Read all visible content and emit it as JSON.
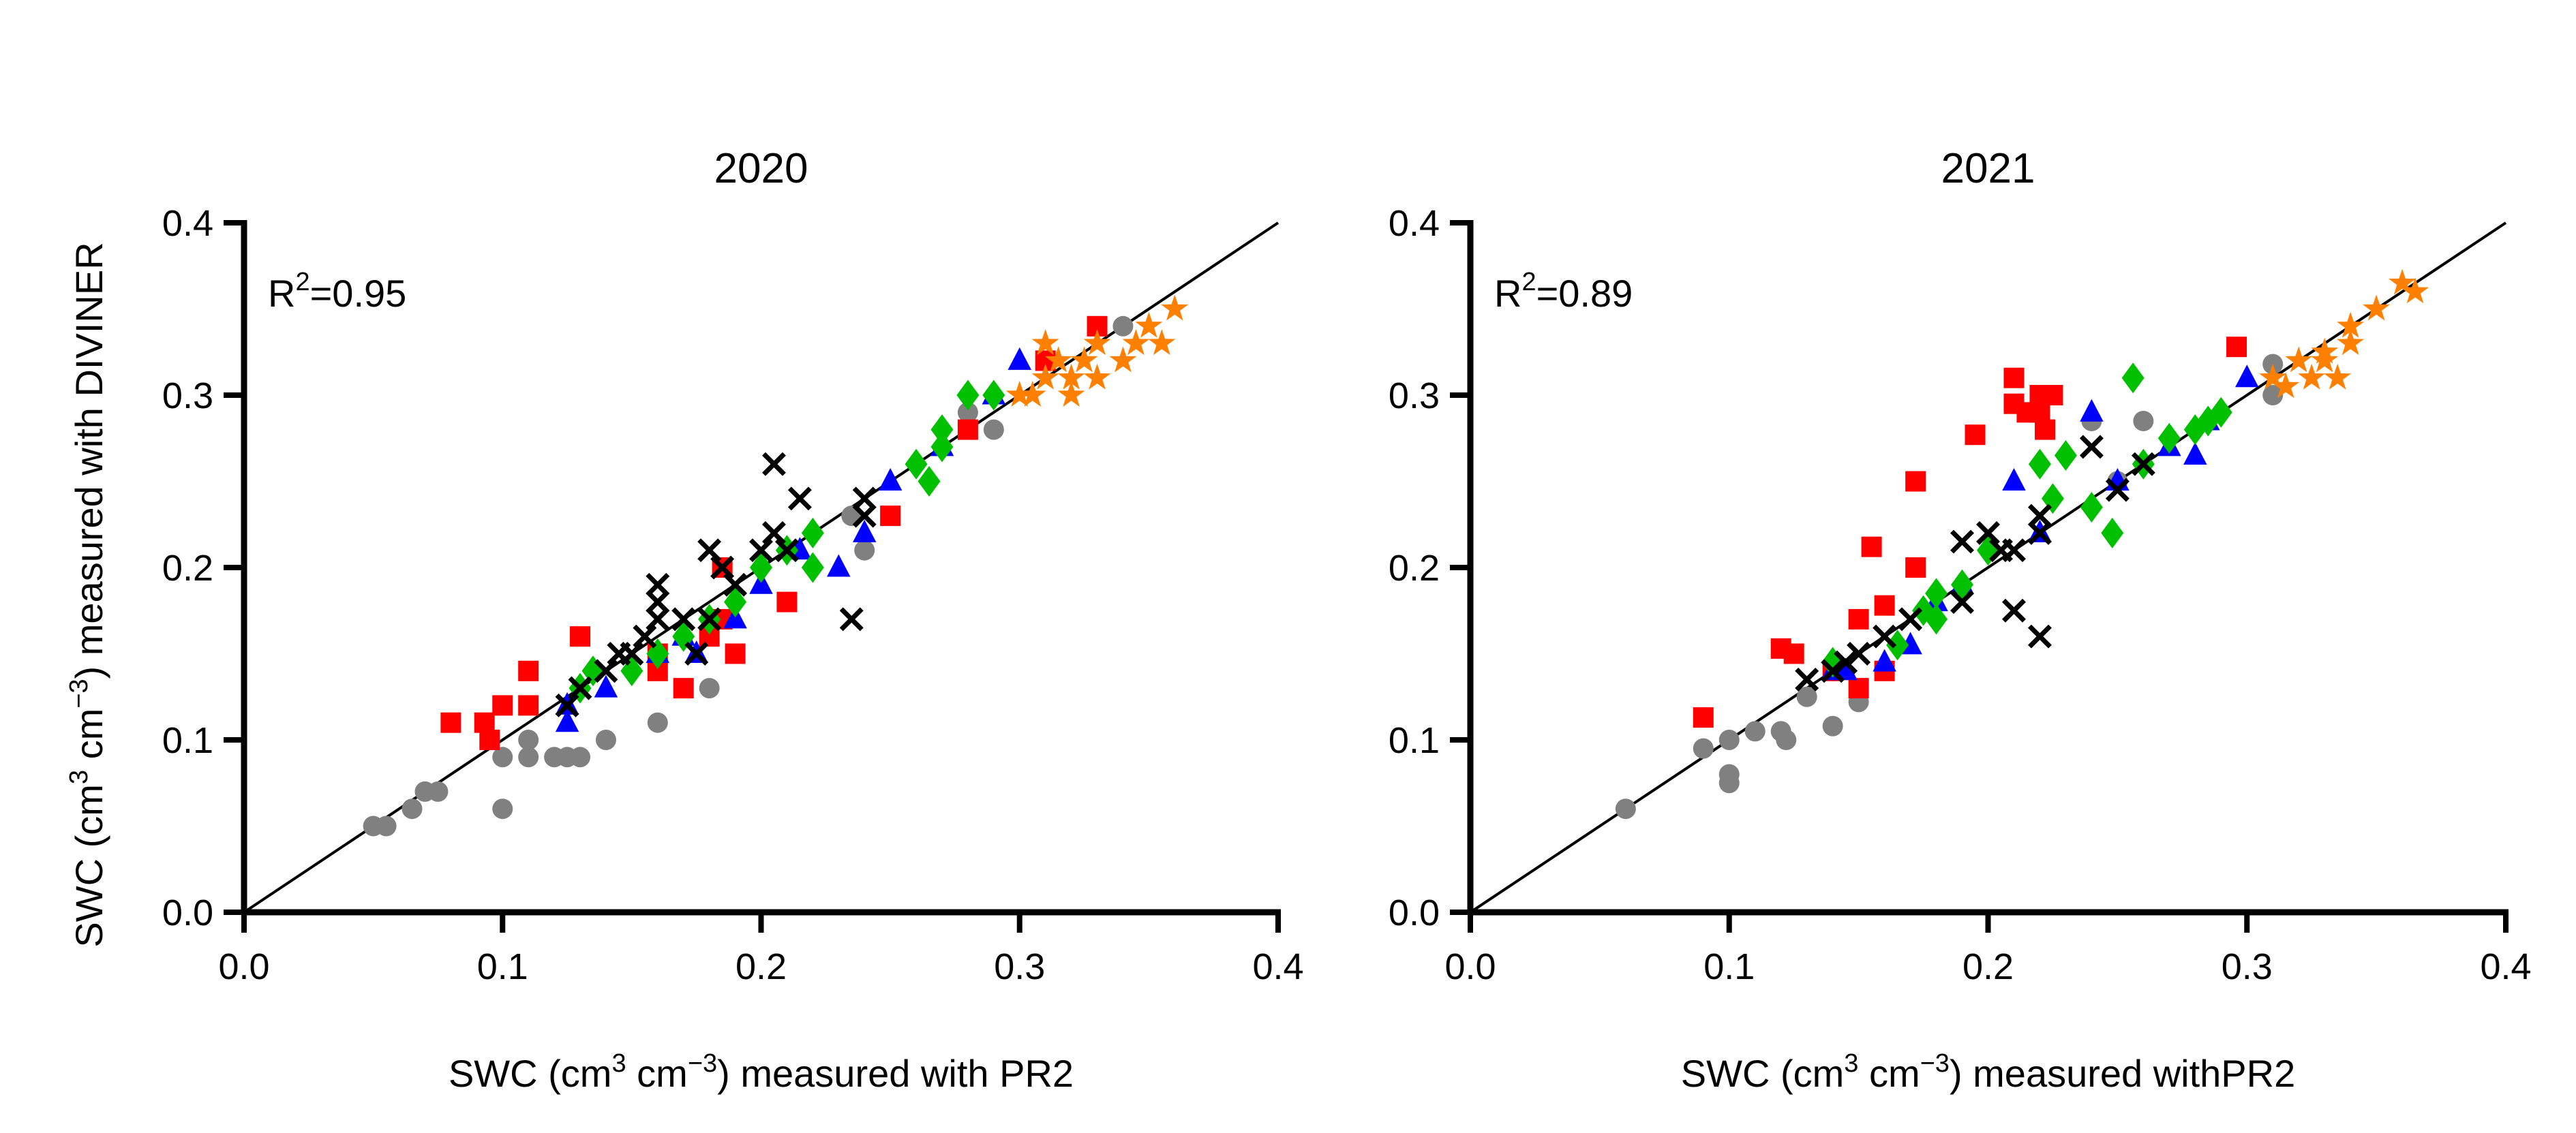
{
  "chart_data": [
    {
      "type": "scatter",
      "title": "2020",
      "annotation": {
        "prefix": "R",
        "sup": "2",
        "suffix": "=0.95"
      },
      "xlabel": {
        "pre": "SWC (cm",
        "sup1": "3",
        "mid": " cm",
        "sup2": "−3",
        "post": ") measured with PR2"
      },
      "ylabel": {
        "pre": "SWC (cm",
        "sup1": "3",
        "mid": " cm",
        "sup2": "−3",
        "post": ") measured with DIVINER"
      },
      "xlim": [
        0,
        0.4
      ],
      "ylim": [
        0,
        0.4
      ],
      "xticks": [
        "0.0",
        "0.1",
        "0.2",
        "0.3",
        "0.4"
      ],
      "yticks": [
        "0.0",
        "0.1",
        "0.2",
        "0.3",
        "0.4"
      ],
      "reference_line": "1:1",
      "series": [
        {
          "marker": "circle",
          "color": "#808080",
          "points": [
            [
              0.05,
              0.05
            ],
            [
              0.055,
              0.05
            ],
            [
              0.065,
              0.06
            ],
            [
              0.07,
              0.07
            ],
            [
              0.075,
              0.07
            ],
            [
              0.1,
              0.09
            ],
            [
              0.1,
              0.06
            ],
            [
              0.11,
              0.1
            ],
            [
              0.11,
              0.09
            ],
            [
              0.12,
              0.09
            ],
            [
              0.125,
              0.09
            ],
            [
              0.13,
              0.09
            ],
            [
              0.14,
              0.1
            ],
            [
              0.16,
              0.11
            ],
            [
              0.18,
              0.13
            ],
            [
              0.24,
              0.21
            ],
            [
              0.235,
              0.23
            ],
            [
              0.28,
              0.29
            ],
            [
              0.29,
              0.28
            ],
            [
              0.34,
              0.34
            ]
          ]
        },
        {
          "marker": "square",
          "color": "#ff0000",
          "points": [
            [
              0.08,
              0.11
            ],
            [
              0.093,
              0.11
            ],
            [
              0.095,
              0.1
            ],
            [
              0.1,
              0.12
            ],
            [
              0.11,
              0.12
            ],
            [
              0.11,
              0.14
            ],
            [
              0.13,
              0.16
            ],
            [
              0.16,
              0.14
            ],
            [
              0.17,
              0.13
            ],
            [
              0.16,
              0.15
            ],
            [
              0.18,
              0.16
            ],
            [
              0.185,
              0.17
            ],
            [
              0.19,
              0.15
            ],
            [
              0.21,
              0.18
            ],
            [
              0.25,
              0.23
            ],
            [
              0.28,
              0.28
            ],
            [
              0.31,
              0.32
            ],
            [
              0.33,
              0.34
            ],
            [
              0.185,
              0.2
            ]
          ]
        },
        {
          "marker": "triangle",
          "color": "#0000ff",
          "points": [
            [
              0.125,
              0.11
            ],
            [
              0.125,
              0.12
            ],
            [
              0.14,
              0.13
            ],
            [
              0.16,
              0.15
            ],
            [
              0.17,
              0.16
            ],
            [
              0.175,
              0.15
            ],
            [
              0.19,
              0.17
            ],
            [
              0.2,
              0.19
            ],
            [
              0.23,
              0.2
            ],
            [
              0.24,
              0.22
            ],
            [
              0.25,
              0.25
            ],
            [
              0.27,
              0.27
            ],
            [
              0.29,
              0.3
            ],
            [
              0.3,
              0.32
            ],
            [
              0.215,
              0.21
            ]
          ]
        },
        {
          "marker": "diamond",
          "color": "#00c000",
          "points": [
            [
              0.13,
              0.13
            ],
            [
              0.135,
              0.14
            ],
            [
              0.15,
              0.14
            ],
            [
              0.16,
              0.15
            ],
            [
              0.17,
              0.16
            ],
            [
              0.18,
              0.17
            ],
            [
              0.19,
              0.18
            ],
            [
              0.2,
              0.2
            ],
            [
              0.21,
              0.21
            ],
            [
              0.22,
              0.22
            ],
            [
              0.22,
              0.2
            ],
            [
              0.26,
              0.26
            ],
            [
              0.265,
              0.25
            ],
            [
              0.27,
              0.27
            ],
            [
              0.27,
              0.28
            ],
            [
              0.28,
              0.3
            ],
            [
              0.29,
              0.3
            ]
          ]
        },
        {
          "marker": "cross",
          "color": "#000000",
          "points": [
            [
              0.125,
              0.12
            ],
            [
              0.13,
              0.13
            ],
            [
              0.14,
              0.14
            ],
            [
              0.145,
              0.15
            ],
            [
              0.15,
              0.15
            ],
            [
              0.155,
              0.16
            ],
            [
              0.16,
              0.17
            ],
            [
              0.16,
              0.18
            ],
            [
              0.16,
              0.19
            ],
            [
              0.17,
              0.17
            ],
            [
              0.175,
              0.15
            ],
            [
              0.18,
              0.17
            ],
            [
              0.18,
              0.21
            ],
            [
              0.185,
              0.2
            ],
            [
              0.19,
              0.19
            ],
            [
              0.2,
              0.21
            ],
            [
              0.205,
              0.22
            ],
            [
              0.205,
              0.26
            ],
            [
              0.21,
              0.21
            ],
            [
              0.215,
              0.24
            ],
            [
              0.235,
              0.17
            ],
            [
              0.24,
              0.23
            ],
            [
              0.24,
              0.24
            ]
          ]
        },
        {
          "marker": "star",
          "color": "#ff8000",
          "points": [
            [
              0.3,
              0.3
            ],
            [
              0.31,
              0.31
            ],
            [
              0.31,
              0.33
            ],
            [
              0.32,
              0.3
            ],
            [
              0.32,
              0.31
            ],
            [
              0.325,
              0.32
            ],
            [
              0.33,
              0.33
            ],
            [
              0.33,
              0.31
            ],
            [
              0.34,
              0.32
            ],
            [
              0.345,
              0.33
            ],
            [
              0.35,
              0.34
            ],
            [
              0.355,
              0.33
            ],
            [
              0.36,
              0.35
            ],
            [
              0.315,
              0.32
            ],
            [
              0.305,
              0.3
            ]
          ]
        }
      ]
    },
    {
      "type": "scatter",
      "title": "2021",
      "annotation": {
        "prefix": "R",
        "sup": "2",
        "suffix": "=0.89"
      },
      "xlabel": {
        "pre": "SWC (cm",
        "sup1": "3",
        "mid": " cm",
        "sup2": "−3",
        "post": ") measured withPR2"
      },
      "xlim": [
        0,
        0.4
      ],
      "ylim": [
        0,
        0.4
      ],
      "xticks": [
        "0.0",
        "0.1",
        "0.2",
        "0.3",
        "0.4"
      ],
      "yticks": [
        "0.0",
        "0.1",
        "0.2",
        "0.3",
        "0.4"
      ],
      "reference_line": "1:1",
      "series": [
        {
          "marker": "circle",
          "color": "#808080",
          "points": [
            [
              0.06,
              0.06
            ],
            [
              0.09,
              0.095
            ],
            [
              0.1,
              0.1
            ],
            [
              0.1,
              0.08
            ],
            [
              0.1,
              0.075
            ],
            [
              0.11,
              0.105
            ],
            [
              0.12,
              0.105
            ],
            [
              0.122,
              0.1
            ],
            [
              0.13,
              0.125
            ],
            [
              0.14,
              0.108
            ],
            [
              0.15,
              0.122
            ],
            [
              0.24,
              0.285
            ],
            [
              0.26,
              0.285
            ],
            [
              0.31,
              0.3
            ],
            [
              0.31,
              0.318
            ],
            [
              0.25,
              0.25
            ]
          ]
        },
        {
          "marker": "square",
          "color": "#ff0000",
          "points": [
            [
              0.09,
              0.113
            ],
            [
              0.12,
              0.153
            ],
            [
              0.125,
              0.15
            ],
            [
              0.14,
              0.14
            ],
            [
              0.15,
              0.13
            ],
            [
              0.15,
              0.17
            ],
            [
              0.155,
              0.212
            ],
            [
              0.16,
              0.14
            ],
            [
              0.16,
              0.178
            ],
            [
              0.172,
              0.25
            ],
            [
              0.172,
              0.2
            ],
            [
              0.195,
              0.277
            ],
            [
              0.21,
              0.31
            ],
            [
              0.21,
              0.295
            ],
            [
              0.215,
              0.29
            ],
            [
              0.22,
              0.3
            ],
            [
              0.22,
              0.29
            ],
            [
              0.222,
              0.28
            ],
            [
              0.225,
              0.3
            ],
            [
              0.296,
              0.328
            ]
          ]
        },
        {
          "marker": "triangle",
          "color": "#0000ff",
          "points": [
            [
              0.14,
              0.14
            ],
            [
              0.145,
              0.14
            ],
            [
              0.16,
              0.145
            ],
            [
              0.17,
              0.155
            ],
            [
              0.19,
              0.19
            ],
            [
              0.21,
              0.25
            ],
            [
              0.22,
              0.22
            ],
            [
              0.24,
              0.29
            ],
            [
              0.25,
              0.25
            ],
            [
              0.27,
              0.27
            ],
            [
              0.28,
              0.265
            ],
            [
              0.285,
              0.285
            ],
            [
              0.3,
              0.31
            ],
            [
              0.18,
              0.18
            ]
          ]
        },
        {
          "marker": "diamond",
          "color": "#00c000",
          "points": [
            [
              0.14,
              0.145
            ],
            [
              0.165,
              0.155
            ],
            [
              0.175,
              0.175
            ],
            [
              0.18,
              0.17
            ],
            [
              0.18,
              0.185
            ],
            [
              0.2,
              0.21
            ],
            [
              0.22,
              0.26
            ],
            [
              0.225,
              0.24
            ],
            [
              0.23,
              0.265
            ],
            [
              0.24,
              0.235
            ],
            [
              0.248,
              0.22
            ],
            [
              0.256,
              0.31
            ],
            [
              0.26,
              0.26
            ],
            [
              0.27,
              0.275
            ],
            [
              0.28,
              0.28
            ],
            [
              0.285,
              0.285
            ],
            [
              0.29,
              0.29
            ],
            [
              0.19,
              0.19
            ]
          ]
        },
        {
          "marker": "cross",
          "color": "#000000",
          "points": [
            [
              0.13,
              0.135
            ],
            [
              0.14,
              0.14
            ],
            [
              0.145,
              0.145
            ],
            [
              0.15,
              0.15
            ],
            [
              0.16,
              0.16
            ],
            [
              0.17,
              0.17
            ],
            [
              0.19,
              0.18
            ],
            [
              0.19,
              0.215
            ],
            [
              0.2,
              0.22
            ],
            [
              0.205,
              0.21
            ],
            [
              0.21,
              0.21
            ],
            [
              0.21,
              0.175
            ],
            [
              0.22,
              0.16
            ],
            [
              0.22,
              0.22
            ],
            [
              0.22,
              0.23
            ],
            [
              0.24,
              0.27
            ],
            [
              0.25,
              0.245
            ],
            [
              0.26,
              0.26
            ]
          ]
        },
        {
          "marker": "star",
          "color": "#ff8000",
          "points": [
            [
              0.31,
              0.31
            ],
            [
              0.315,
              0.305
            ],
            [
              0.32,
              0.32
            ],
            [
              0.325,
              0.31
            ],
            [
              0.33,
              0.32
            ],
            [
              0.335,
              0.31
            ],
            [
              0.34,
              0.33
            ],
            [
              0.34,
              0.34
            ],
            [
              0.35,
              0.35
            ],
            [
              0.36,
              0.365
            ],
            [
              0.365,
              0.36
            ],
            [
              0.33,
              0.325
            ]
          ]
        }
      ]
    }
  ]
}
